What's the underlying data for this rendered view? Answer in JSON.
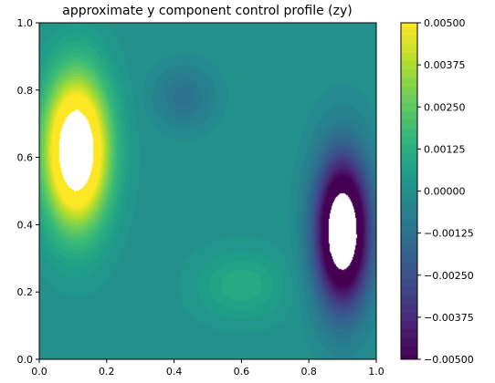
{
  "chart_data": {
    "type": "heatmap",
    "title": "approximate y component control profile (zy)",
    "xlabel": "",
    "ylabel": "",
    "xlim": [
      0.0,
      1.0
    ],
    "ylim": [
      0.0,
      1.0
    ],
    "x_ticks": [
      "0.0",
      "0.2",
      "0.4",
      "0.6",
      "0.8",
      "1.0"
    ],
    "y_ticks": [
      "0.0",
      "0.2",
      "0.4",
      "0.6",
      "0.8",
      "1.0"
    ],
    "colorbar": {
      "min": -0.005,
      "max": 0.005,
      "colormap": "viridis",
      "ticks": [
        "−0.00500",
        "−0.00375",
        "−0.00250",
        "−0.00125",
        "0.00000",
        "0.00125",
        "0.00250",
        "0.00375",
        "0.00500"
      ]
    },
    "features": [
      {
        "kind": "positive-peak",
        "center": [
          0.11,
          0.62
        ],
        "sigma": [
          0.065,
          0.15
        ],
        "value": 0.0092
      },
      {
        "kind": "negative-peak",
        "center": [
          0.9,
          0.38
        ],
        "sigma": [
          0.055,
          0.15
        ],
        "value": -0.009
      },
      {
        "kind": "local-high",
        "center": [
          0.6,
          0.22
        ],
        "sigma": [
          0.09,
          0.07
        ],
        "value": 0.0011
      },
      {
        "kind": "local-low",
        "center": [
          0.43,
          0.78
        ],
        "sigma": [
          0.06,
          0.06
        ],
        "value": -0.0013
      }
    ],
    "grid": false,
    "clipping": "values outside colorbar range shown white"
  }
}
